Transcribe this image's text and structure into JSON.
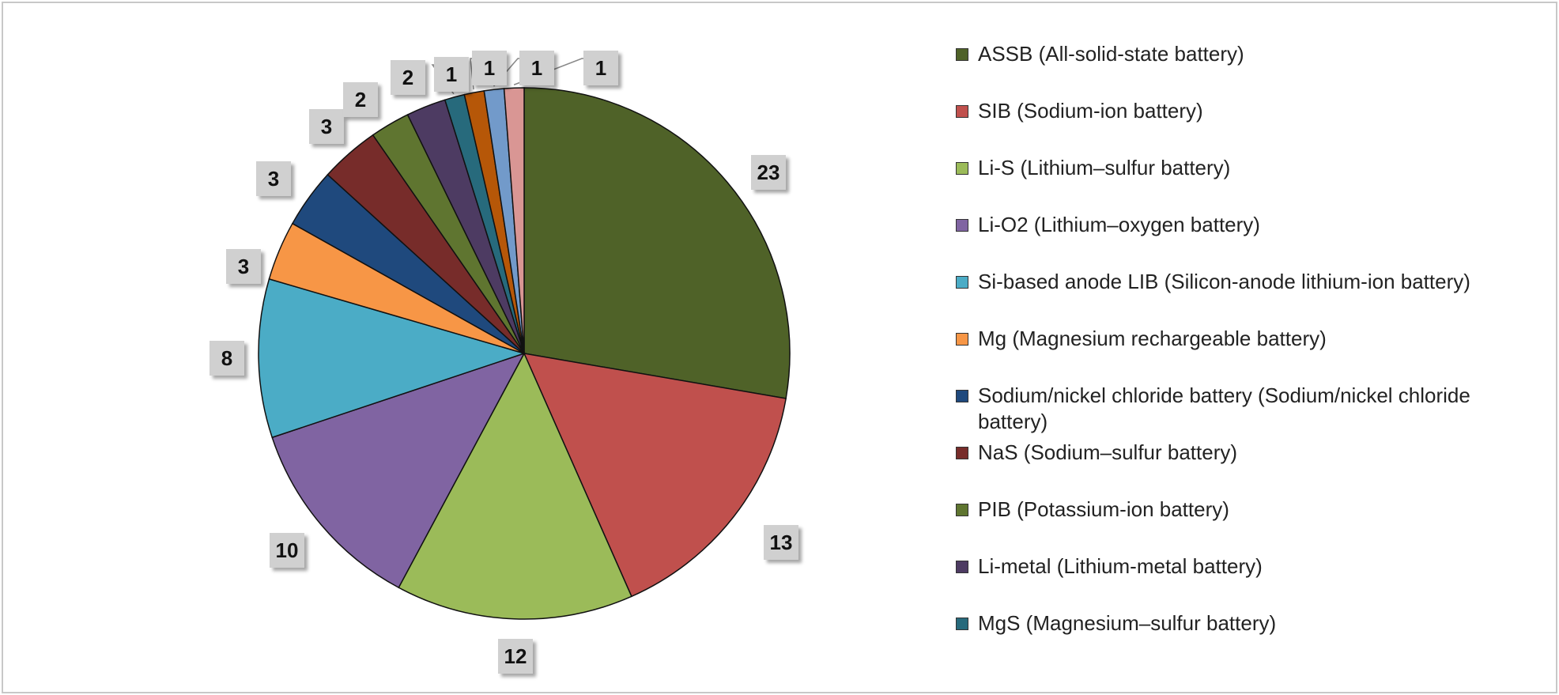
{
  "chart_data": {
    "type": "pie",
    "title": "",
    "legend_position": "right",
    "slices": [
      {
        "label": "ASSB (All-solid-state battery)",
        "value": 23,
        "color": "#4f6228"
      },
      {
        "label": "SIB (Sodium-ion battery)",
        "value": 13,
        "color": "#c0504d"
      },
      {
        "label": "Li-S (Lithium–sulfur battery)",
        "value": 12,
        "color": "#9bbb59"
      },
      {
        "label": "Li-O2 (Lithium–oxygen battery)",
        "value": 10,
        "color": "#8064a2"
      },
      {
        "label": "Si-based anode LIB (Silicon-anode lithium-ion battery)",
        "value": 8,
        "color": "#4bacc6"
      },
      {
        "label": "Mg (Magnesium rechargeable battery)",
        "value": 3,
        "color": "#f79646"
      },
      {
        "label": "Sodium/nickel chloride battery (Sodium/nickel chloride battery)",
        "value": 3,
        "color": "#1f497d"
      },
      {
        "label": "NaS (Sodium–sulfur battery)",
        "value": 3,
        "color": "#772c2a"
      },
      {
        "label": "PIB (Potassium-ion battery)",
        "value": 2,
        "color": "#5f7530"
      },
      {
        "label": "Li-metal (Lithium-metal battery)",
        "value": 2,
        "color": "#4d3b62"
      },
      {
        "label": "MgS (Magnesium–sulfur battery)",
        "value": 1,
        "color": "#276a7c"
      },
      {
        "label": null,
        "value": 1,
        "color": "#b65708"
      },
      {
        "label": null,
        "value": 1,
        "color": "#729aca"
      },
      {
        "label": null,
        "value": 1,
        "color": "#d99694"
      }
    ]
  }
}
